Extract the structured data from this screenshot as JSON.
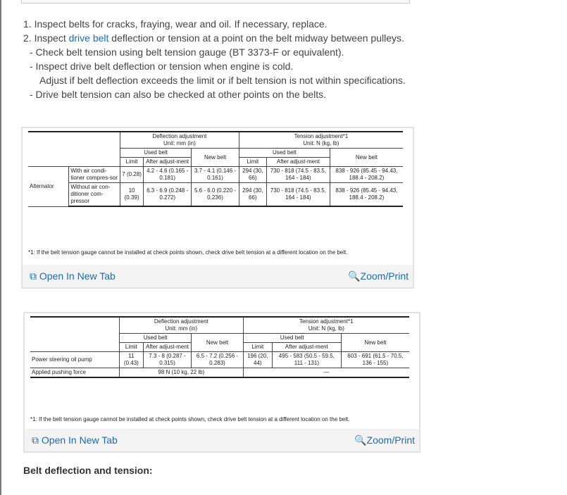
{
  "steps": {
    "s1": "1. Inspect belts for cracks, fraying, wear and oil. If necessary, replace.",
    "s2_pre": "2. Inspect ",
    "s2_link": "drive belt",
    "s2_post": " deflection or tension at a point on the belt midway between pulleys.",
    "b1": "- Check belt tension using belt tension gauge (BT 3373-F or equivalent).",
    "b2": "- Inspect drive belt deflection or tension when engine is cold.",
    "b2b": "Adjust if belt deflection exceeds the limit or if belt tension is not within specifications.",
    "b3": "- Drive belt tension can also be checked at other points on the belts."
  },
  "headers": {
    "deflection": "Deflection adjustment",
    "deflection_unit": "Unit: mm (in)",
    "tension": "Tension adjustment*1",
    "tension_unit": "Unit: N (kg, lb)",
    "used": "Used belt",
    "new": "New belt",
    "limit": "Limit",
    "after": "After adjust-ment"
  },
  "table1": {
    "group": "Alternator",
    "rows": [
      {
        "label": "With air condi-tioner compres-sor",
        "cells": [
          "7 (0.28)",
          "4.2 - 4.6 (0.165 - 0.181)",
          "3.7 - 4.1 (0.146 - 0.161)",
          "294 (30, 66)",
          "730 - 818 (74.5 - 83.5, 164 - 184)",
          "838 - 926 (85.45 - 94.43, 188.4 - 208.2)"
        ]
      },
      {
        "label": "Without air con-ditioner com-pressor",
        "cells": [
          "10 (0.39)",
          "6.3 - 6.9 (0.248 - 0.272)",
          "5.6 - 6.0 (0.220 - 0.236)",
          "294 (30, 66)",
          "730 - 818 (74.5 - 83.5, 164 - 184)",
          "838 - 926 (85.45 - 94.43, 188.4 - 208.2)"
        ]
      }
    ]
  },
  "table2": {
    "row": {
      "label": "Power steering oil pump",
      "cells": [
        "11 (0.43)",
        "7.3 - 8 (0.287 - 0.315)",
        "6.5 - 7.2 (0.256 - 0.283)",
        "196 (20, 44)",
        "495 - 583 (50.5 - 59.5, 111 - 131)",
        "603 - 691 (61.5 - 70.5, 136 - 155)"
      ]
    },
    "force_label": "Applied pushing force",
    "force_value": "98 N (10 kg, 22 lb)",
    "force_tension": "—"
  },
  "note": "*1: If the belt tension gauge cannot be installed at check points shown, check drive belt tension at a different location on the belt.",
  "footer": {
    "open": "Open In New Tab",
    "zoom": "Zoom/Print"
  },
  "heading": "Belt deflection and tension:"
}
